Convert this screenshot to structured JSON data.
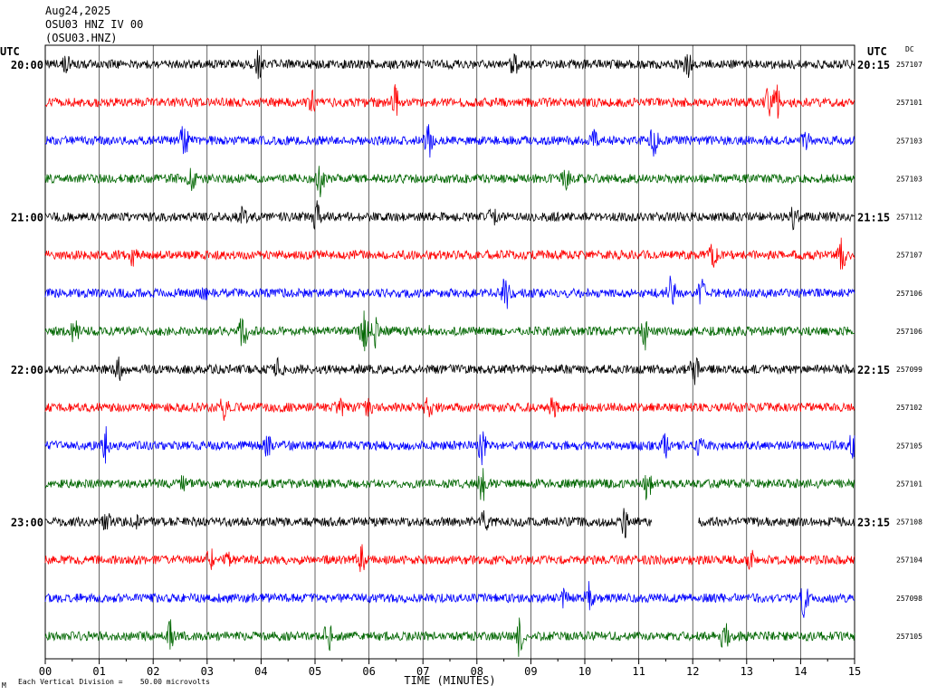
{
  "header": {
    "date": "Aug24,2025",
    "station": "OSU03 HNZ IV 00",
    "channel": "(OSU03.HNZ)"
  },
  "left_axis_title": "UTC",
  "right_axis_title": "UTC",
  "dc_title": "DC",
  "footer": {
    "corner_mark": "M",
    "scale_text": "Each Vertical Division =    50.00 microvolts"
  },
  "chart_data": {
    "type": "line",
    "title": "",
    "xlabel": "TIME (MINUTES)",
    "ylabel": "",
    "xlim": [
      0,
      15
    ],
    "x_ticks": [
      "00",
      "01",
      "02",
      "03",
      "04",
      "05",
      "06",
      "07",
      "08",
      "09",
      "10",
      "11",
      "12",
      "13",
      "14",
      "15"
    ],
    "grid": true,
    "trace_colors": [
      "#000000",
      "#ff0000",
      "#0000ff",
      "#006600"
    ],
    "hour_labels_left": [
      {
        "row": 0,
        "label": "20:00"
      },
      {
        "row": 4,
        "label": "21:00"
      },
      {
        "row": 8,
        "label": "22:00"
      },
      {
        "row": 12,
        "label": "23:00"
      }
    ],
    "hour_labels_right": [
      {
        "row": 0,
        "label": "20:15"
      },
      {
        "row": 4,
        "label": "21:15"
      },
      {
        "row": 8,
        "label": "22:15"
      },
      {
        "row": 12,
        "label": "23:15"
      }
    ],
    "series": [
      {
        "dc": "257107"
      },
      {
        "dc": "257101"
      },
      {
        "dc": "257103"
      },
      {
        "dc": "257103"
      },
      {
        "dc": "257112"
      },
      {
        "dc": "257107"
      },
      {
        "dc": "257106"
      },
      {
        "dc": "257106"
      },
      {
        "dc": "257099"
      },
      {
        "dc": "257102"
      },
      {
        "dc": "257105"
      },
      {
        "dc": "257101"
      },
      {
        "dc": "257108",
        "gap_minutes": [
          11.25,
          12.1
        ]
      },
      {
        "dc": "257104"
      },
      {
        "dc": "257098"
      },
      {
        "dc": "257105"
      }
    ]
  }
}
